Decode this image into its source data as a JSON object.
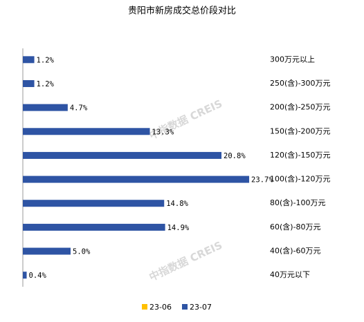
{
  "chart_data": {
    "type": "hbar",
    "title": "贵阳市新房成交总价段对比",
    "watermark": "中指数据 CREIS",
    "categories": [
      "300万元以上",
      "250(含)-300万元",
      "200(含)-250万元",
      "150(含)-200万元",
      "120(含)-150万元",
      "100(含)-120万元",
      "80(含)-100万元",
      "60(含)-80万元",
      "40(含)-60万元",
      "40万元以下"
    ],
    "series": [
      {
        "name": "23-06",
        "color": "#FFC000",
        "values": [
          null,
          null,
          null,
          null,
          null,
          null,
          null,
          null,
          null,
          null
        ]
      },
      {
        "name": "23-07",
        "color": "#2E54A4",
        "values": [
          1.2,
          1.2,
          4.7,
          13.3,
          20.8,
          23.7,
          14.8,
          14.9,
          5.0,
          0.4
        ],
        "value_labels": [
          "1.2%",
          "1.2%",
          "4.7%",
          "13.3%",
          "20.8%",
          "23.7%",
          "14.8%",
          "14.9%",
          "5.0%",
          "0.4%"
        ]
      }
    ],
    "legend": "bottom"
  }
}
